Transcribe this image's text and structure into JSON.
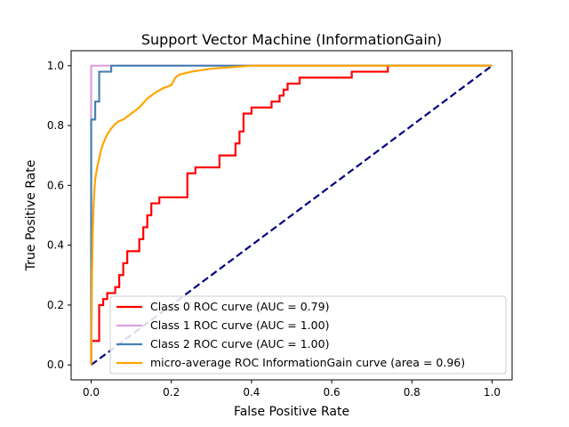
{
  "chart_data": {
    "type": "line",
    "title": "Support Vector Machine (InformationGain)",
    "xlabel": "False Positive Rate",
    "ylabel": "True Positive Rate",
    "xlim": [
      -0.05,
      1.05
    ],
    "ylim": [
      -0.05,
      1.05
    ],
    "xticks": [
      "0.0",
      "0.2",
      "0.4",
      "0.6",
      "0.8",
      "1.0"
    ],
    "yticks": [
      "0.0",
      "0.2",
      "0.4",
      "0.6",
      "0.8",
      "1.0"
    ],
    "xtick_values": [
      0,
      0.2,
      0.4,
      0.6,
      0.8,
      1.0
    ],
    "ytick_values": [
      0,
      0.2,
      0.4,
      0.6,
      0.8,
      1.0
    ],
    "grid": false,
    "legend_position": "lower-right",
    "series": [
      {
        "name": "Class 0 ROC curve (AUC = 0.79)",
        "color": "#ff0000",
        "style": "solid",
        "x": [
          0,
          0,
          0.02,
          0.02,
          0.03,
          0.03,
          0.04,
          0.04,
          0.06,
          0.06,
          0.07,
          0.07,
          0.08,
          0.08,
          0.09,
          0.09,
          0.12,
          0.12,
          0.13,
          0.13,
          0.14,
          0.14,
          0.15,
          0.15,
          0.17,
          0.17,
          0.24,
          0.24,
          0.26,
          0.26,
          0.32,
          0.32,
          0.36,
          0.36,
          0.37,
          0.37,
          0.38,
          0.38,
          0.4,
          0.4,
          0.45,
          0.45,
          0.47,
          0.47,
          0.48,
          0.48,
          0.49,
          0.49,
          0.52,
          0.52,
          0.65,
          0.65,
          0.74,
          0.74,
          1.0
        ],
        "y": [
          0,
          0.08,
          0.08,
          0.2,
          0.2,
          0.22,
          0.22,
          0.24,
          0.24,
          0.26,
          0.26,
          0.3,
          0.3,
          0.34,
          0.34,
          0.38,
          0.38,
          0.42,
          0.42,
          0.46,
          0.46,
          0.5,
          0.5,
          0.54,
          0.54,
          0.56,
          0.56,
          0.64,
          0.64,
          0.66,
          0.66,
          0.7,
          0.7,
          0.74,
          0.74,
          0.78,
          0.78,
          0.84,
          0.84,
          0.86,
          0.86,
          0.88,
          0.88,
          0.9,
          0.9,
          0.92,
          0.92,
          0.94,
          0.94,
          0.96,
          0.96,
          0.98,
          0.98,
          1.0,
          1.0
        ]
      },
      {
        "name": "Class 1 ROC curve (AUC = 1.00)",
        "color": "#dda0dd",
        "style": "solid",
        "x": [
          0,
          0,
          1.0
        ],
        "y": [
          0,
          1.0,
          1.0
        ]
      },
      {
        "name": "Class 2 ROC curve (AUC = 1.00)",
        "color": "#4682b4",
        "style": "solid",
        "x": [
          0,
          0,
          0.01,
          0.01,
          0.02,
          0.02,
          0.05,
          0.05,
          1.0
        ],
        "y": [
          0,
          0.82,
          0.82,
          0.88,
          0.88,
          0.98,
          0.98,
          1.0,
          1.0
        ]
      },
      {
        "name": "micro-average ROC InformationGain curve (area = 0.96)",
        "color": "#ffa500",
        "style": "solid",
        "x": [
          0,
          0.002,
          0.004,
          0.006,
          0.008,
          0.01,
          0.015,
          0.02,
          0.025,
          0.03,
          0.04,
          0.05,
          0.06,
          0.07,
          0.08,
          0.1,
          0.12,
          0.14,
          0.16,
          0.18,
          0.2,
          0.21,
          0.22,
          0.25,
          0.3,
          0.35,
          0.4,
          0.45,
          0.5,
          0.6,
          0.7,
          0.8,
          0.9,
          1.0
        ],
        "y": [
          0,
          0.3,
          0.45,
          0.53,
          0.58,
          0.62,
          0.66,
          0.69,
          0.72,
          0.74,
          0.77,
          0.79,
          0.805,
          0.815,
          0.82,
          0.84,
          0.86,
          0.89,
          0.91,
          0.925,
          0.935,
          0.96,
          0.97,
          0.98,
          0.99,
          0.995,
          1.0,
          1.0,
          1.0,
          1.0,
          1.0,
          1.0,
          1.0,
          1.0
        ]
      }
    ],
    "reference_line": {
      "color": "#000080",
      "style": "dashed",
      "x": [
        0,
        1
      ],
      "y": [
        0,
        1
      ]
    }
  }
}
